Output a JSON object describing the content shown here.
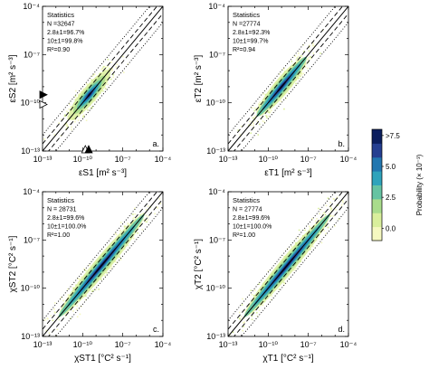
{
  "chart_data": {
    "type": "heatmap",
    "colorbar": {
      "label": "Probability (× 10⁻³)",
      "ticks": [
        "0.0",
        "2.5",
        "5.0",
        "7.5"
      ],
      "top_label": ">7.5",
      "range": [
        -1,
        8
      ],
      "colors": [
        "#f5f8c0",
        "#d9ef9c",
        "#a9dc8c",
        "#66c3a2",
        "#2fa3bb",
        "#2277b0",
        "#253f91",
        "#0b1e5e"
      ]
    },
    "panels": [
      {
        "letter": "a.",
        "xlabel": "εS1 [m² s⁻³]",
        "ylabel": "εS2 [m² s⁻³]",
        "x_range_log10": [
          -13,
          -4
        ],
        "y_range_log10": [
          -13,
          -4
        ],
        "x_ticks": [
          "10⁻¹³",
          "10⁻¹⁰",
          "10⁻⁷",
          "10⁻⁴"
        ],
        "y_ticks": [
          "10⁻¹³",
          "10⁻¹⁰",
          "10⁻⁷",
          "10⁻⁴"
        ],
        "stats": [
          "Statistics",
          "N =32647",
          "2.8±1=96.7%",
          "10±1=99.8%",
          "R²=0.90"
        ],
        "density": {
          "center_log10": -9.5,
          "core_half_length": 0.55,
          "spread": 1.6
        },
        "markers": [
          {
            "shape": "triangle-right",
            "fill": "black",
            "axis": "y",
            "value_log10": -9.5
          },
          {
            "shape": "triangle-right",
            "fill": "white",
            "axis": "y",
            "value_log10": -10.1
          },
          {
            "shape": "triangle-up",
            "fill": "white",
            "axis": "x",
            "value_log10": -9.8
          },
          {
            "shape": "triangle-up",
            "fill": "black",
            "axis": "x",
            "value_log10": -9.55
          }
        ]
      },
      {
        "letter": "b.",
        "xlabel": "εT1 [m² s⁻³]",
        "ylabel": "εT2 [m² s⁻³]",
        "x_range_log10": [
          -13,
          -4
        ],
        "y_range_log10": [
          -13,
          -4
        ],
        "x_ticks": [
          "10⁻¹³",
          "10⁻¹⁰",
          "10⁻⁷",
          "10⁻⁴"
        ],
        "y_ticks": [
          "10⁻¹³",
          "10⁻¹⁰",
          "10⁻⁷",
          "10⁻⁴"
        ],
        "stats": [
          "Statistics",
          "N =27774",
          "2.8±1=92.3%",
          "10±1=99.7%",
          "R²=0.94"
        ],
        "density": {
          "center_log10": -9.0,
          "core_half_length": 1.4,
          "spread": 1.9
        },
        "markers": []
      },
      {
        "letter": "c.",
        "xlabel": "χST1 [°C² s⁻¹]",
        "ylabel": "χST2 [°C² s⁻¹]",
        "x_range_log10": [
          -13,
          -4
        ],
        "y_range_log10": [
          -13,
          -4
        ],
        "x_ticks": [
          "10⁻¹³",
          "10⁻¹⁰",
          "10⁻⁷",
          "10⁻⁴"
        ],
        "y_ticks": [
          "10⁻¹³",
          "10⁻¹⁰",
          "10⁻⁷",
          "10⁻⁴"
        ],
        "stats": [
          "Statistics",
          "N = 28731",
          "2.8±1=99.6%",
          "10±1=100.0%",
          "R²=1.00"
        ],
        "density": {
          "center_log10": -8.6,
          "core_half_length": 2.6,
          "spread": 3.3
        },
        "markers": []
      },
      {
        "letter": "d.",
        "xlabel": "χT1 [°C² s⁻¹]",
        "ylabel": "χT2 [°C² s⁻¹]",
        "x_range_log10": [
          -13,
          -4
        ],
        "y_range_log10": [
          -13,
          -4
        ],
        "x_ticks": [
          "10⁻¹³",
          "10⁻¹⁰",
          "10⁻⁷",
          "10⁻⁴"
        ],
        "y_ticks": [
          "10⁻¹³",
          "10⁻¹⁰",
          "10⁻⁷",
          "10⁻⁴"
        ],
        "stats": [
          "Statistics",
          "N = 27774",
          "2.8±1=99.6%",
          "10±1=100.0%",
          "R²=1.00"
        ],
        "density": {
          "center_log10": -8.6,
          "core_half_length": 2.6,
          "spread": 3.3
        },
        "markers": []
      }
    ],
    "reference_lines": [
      {
        "style": "solid",
        "factor": 1
      },
      {
        "style": "dashed",
        "factor": 2.8
      },
      {
        "style": "dotted",
        "factor": 10
      }
    ]
  }
}
